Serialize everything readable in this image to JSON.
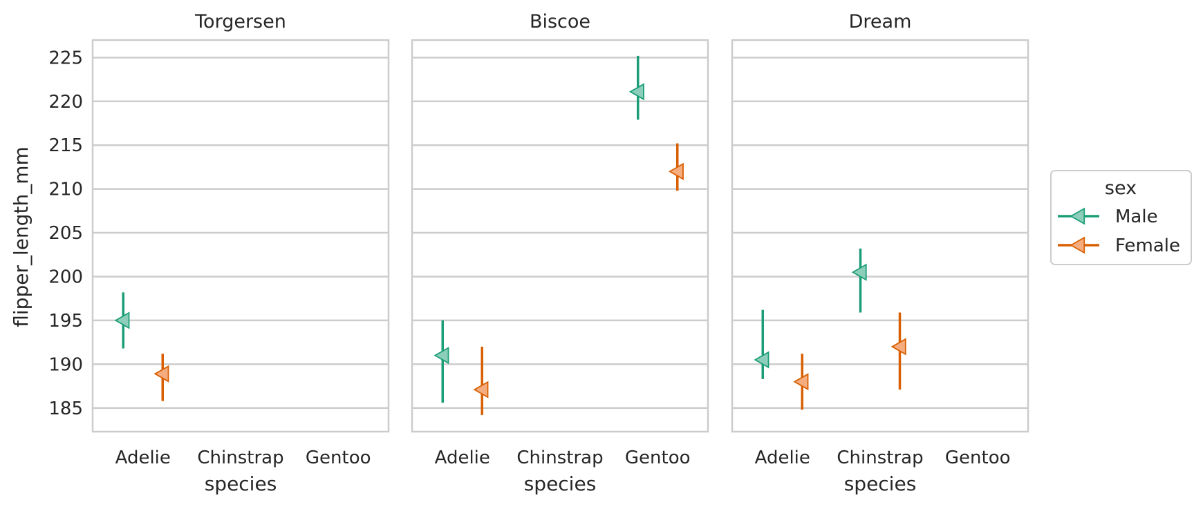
{
  "chart_data": {
    "type": "pointplot",
    "x_categories": [
      "Adelie",
      "Chinstrap",
      "Gentoo"
    ],
    "xlabel": "species",
    "ylabel": "flipper_length_mm",
    "ylim": [
      182.3,
      227
    ],
    "yticks": [
      185,
      190,
      195,
      200,
      205,
      210,
      215,
      220,
      225
    ],
    "grid": true,
    "marker": "triangle-left",
    "legend": {
      "title": "sex",
      "placement": "right",
      "entries": [
        {
          "name": "Male",
          "color": "#1b9e77",
          "fill": "#8dcebb"
        },
        {
          "name": "Female",
          "color": "#d95f02",
          "fill": "#f5ad80"
        }
      ]
    },
    "panels": [
      {
        "title": "Torgersen",
        "series": [
          {
            "name": "Male",
            "points": [
              {
                "x": "Adelie",
                "y": 195,
                "ci": [
                  191.8,
                  198.2
                ]
              }
            ]
          },
          {
            "name": "Female",
            "points": [
              {
                "x": "Adelie",
                "y": 188.9,
                "ci": [
                  185.8,
                  191.2
                ]
              }
            ]
          }
        ]
      },
      {
        "title": "Biscoe",
        "series": [
          {
            "name": "Male",
            "points": [
              {
                "x": "Adelie",
                "y": 191,
                "ci": [
                  185.6,
                  195
                ]
              },
              {
                "x": "Gentoo",
                "y": 221.1,
                "ci": [
                  217.9,
                  225.2
                ]
              }
            ]
          },
          {
            "name": "Female",
            "points": [
              {
                "x": "Adelie",
                "y": 187.1,
                "ci": [
                  184.2,
                  192
                ]
              },
              {
                "x": "Gentoo",
                "y": 212,
                "ci": [
                  209.8,
                  215.2
                ]
              }
            ]
          }
        ]
      },
      {
        "title": "Dream",
        "series": [
          {
            "name": "Male",
            "points": [
              {
                "x": "Adelie",
                "y": 190.5,
                "ci": [
                  188.3,
                  196.2
                ]
              },
              {
                "x": "Chinstrap",
                "y": 200.5,
                "ci": [
                  195.9,
                  203.2
                ]
              }
            ]
          },
          {
            "name": "Female",
            "points": [
              {
                "x": "Adelie",
                "y": 188,
                "ci": [
                  184.8,
                  191.2
                ]
              },
              {
                "x": "Chinstrap",
                "y": 192,
                "ci": [
                  187.1,
                  195.9
                ]
              }
            ]
          }
        ]
      }
    ]
  }
}
